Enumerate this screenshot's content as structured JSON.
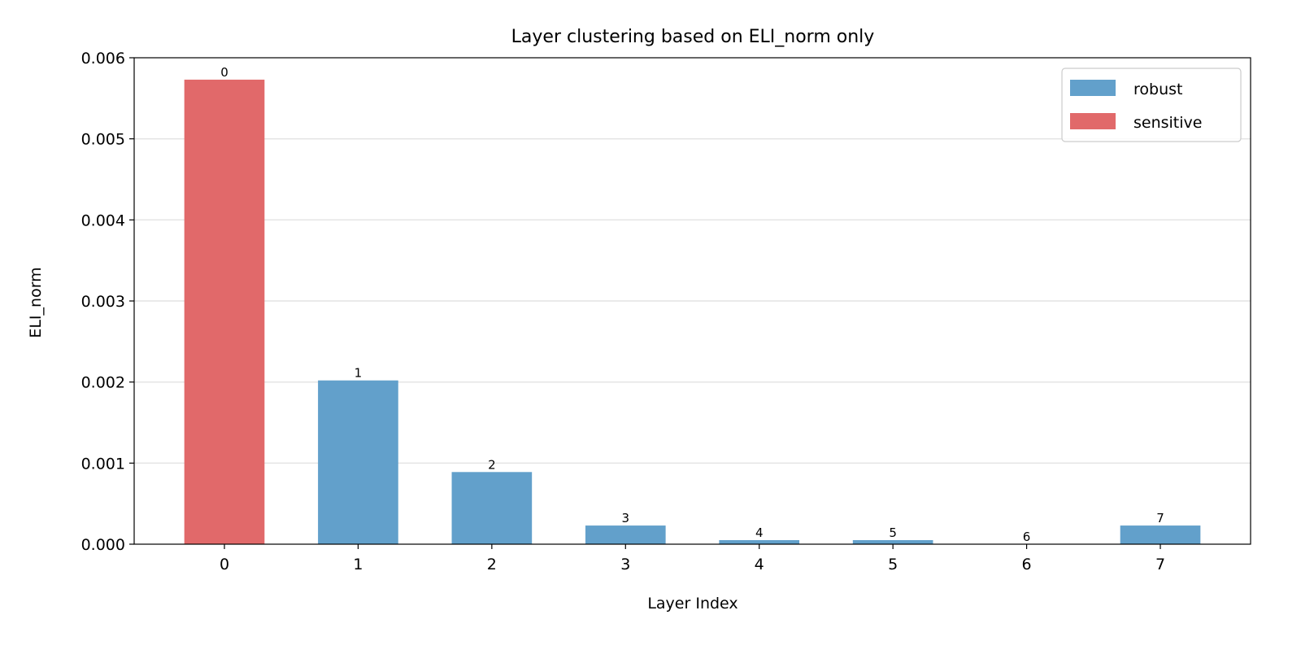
{
  "chart_data": {
    "type": "bar",
    "title": "Layer clustering based on ELI_norm only",
    "xlabel": "Layer Index",
    "ylabel": "ELI_norm",
    "categories": [
      "0",
      "1",
      "2",
      "3",
      "4",
      "5",
      "6",
      "7"
    ],
    "values": [
      0.00573,
      0.00202,
      0.00089,
      0.00023,
      5e-05,
      5e-05,
      0.0,
      0.00023
    ],
    "clusters": [
      "sensitive",
      "robust",
      "robust",
      "robust",
      "robust",
      "robust",
      "robust",
      "robust"
    ],
    "bar_labels": [
      "0",
      "1",
      "2",
      "3",
      "4",
      "5",
      "6",
      "7"
    ],
    "ylim": [
      0,
      0.006
    ],
    "yticks": [
      0.0,
      0.001,
      0.002,
      0.003,
      0.004,
      0.005,
      0.006
    ],
    "ytick_labels": [
      "0.000",
      "0.001",
      "0.002",
      "0.003",
      "0.004",
      "0.005",
      "0.006"
    ],
    "grid": "horizontal",
    "legend": {
      "placement": "top-right",
      "entries": [
        {
          "name": "robust",
          "color": "#62a0cb"
        },
        {
          "name": "sensitive",
          "color": "#e1696a"
        }
      ]
    },
    "colors": {
      "robust": "#62a0cb",
      "sensitive": "#e1696a"
    }
  }
}
